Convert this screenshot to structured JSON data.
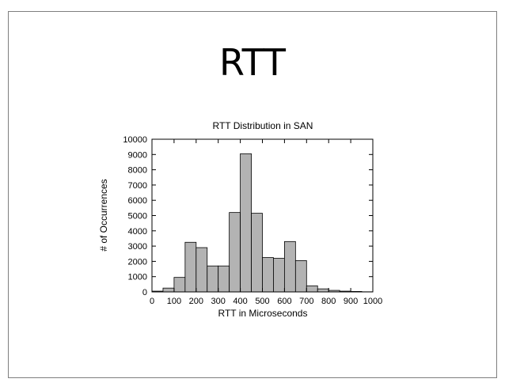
{
  "slide": {
    "title": "RTT"
  },
  "chart_data": {
    "type": "bar",
    "title": "RTT Distribution in SAN",
    "xlabel": "RTT in Microseconds",
    "ylabel": "# of Occurrences",
    "xlim": [
      0,
      1000
    ],
    "ylim": [
      0,
      10000
    ],
    "xticks": [
      0,
      100,
      200,
      300,
      400,
      500,
      600,
      700,
      800,
      900,
      1000
    ],
    "yticks": [
      0,
      1000,
      2000,
      3000,
      4000,
      5000,
      6000,
      7000,
      8000,
      9000,
      10000
    ],
    "bin_width": 50,
    "bin_starts": [
      0,
      50,
      100,
      150,
      200,
      250,
      300,
      350,
      400,
      450,
      500,
      550,
      600,
      650,
      700,
      750,
      800,
      850,
      900,
      950
    ],
    "values": [
      50,
      250,
      950,
      3250,
      2900,
      1700,
      1700,
      5200,
      9050,
      5150,
      2250,
      2200,
      3300,
      2050,
      400,
      200,
      100,
      50,
      30,
      10
    ],
    "bar_color": "#b3b3b3",
    "grid": false,
    "legend": "none"
  }
}
